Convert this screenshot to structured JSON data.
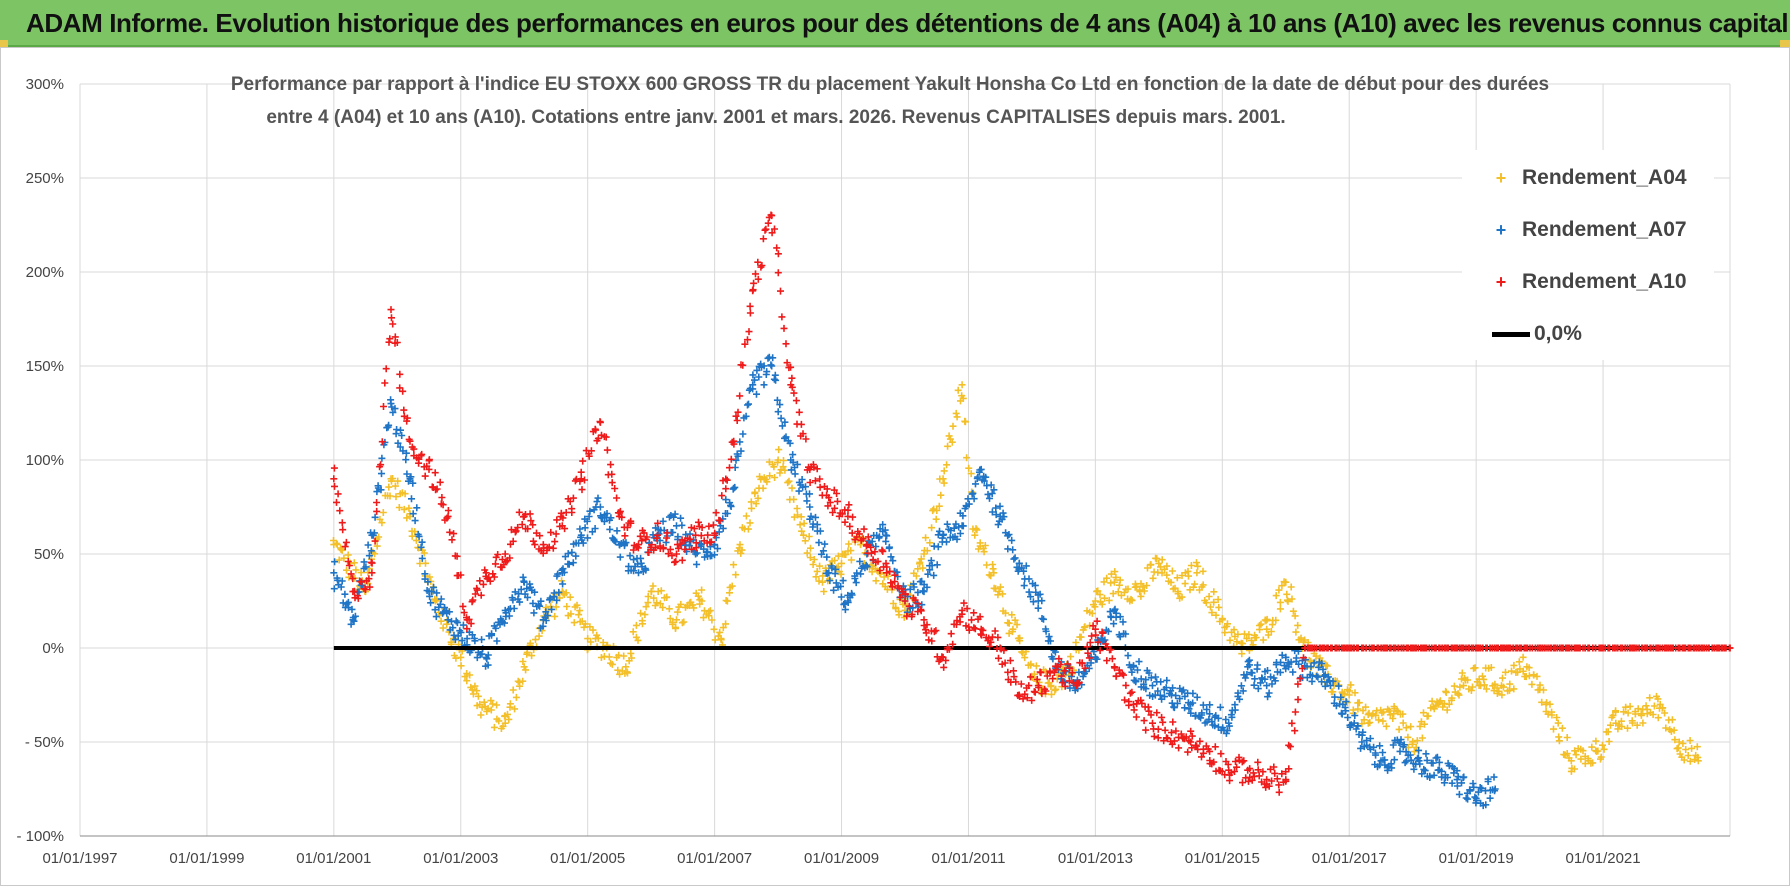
{
  "banner": {
    "title": "ADAM Informe. Evolution historique des performances en euros pour des détentions de 4 ans (A04) à 10 ans (A10) avec les revenus connus capitalisés"
  },
  "colors": {
    "banner_bg": "#7dc465",
    "A04": "#f4c02a",
    "A07": "#1f74c6",
    "A10": "#ef1b1b",
    "zero": "#000000",
    "grid": "#d9d9d9"
  },
  "chart_data": {
    "type": "scatter",
    "title_line1": "Performance par rapport à l'indice EU STOXX 600 GROSS TR  du placement Yakult Honsha Co Ltd en fonction de la date de début pour des durées",
    "title_line2": "entre 4 (A04) et 10 ans (A10).  Cotations entre janv. 2001 et mars. 2026.  Revenus CAPITALISES depuis mars. 2001.",
    "x_tick_labels": [
      "01/01/1997",
      "01/01/1999",
      "01/01/2001",
      "01/01/2003",
      "01/01/2005",
      "01/01/2007",
      "01/01/2009",
      "01/01/2011",
      "01/01/2013",
      "01/01/2015",
      "01/01/2017",
      "01/01/2019",
      "01/01/2021"
    ],
    "x_ticks": [
      1997,
      1999,
      2001,
      2003,
      2005,
      2007,
      2009,
      2011,
      2013,
      2015,
      2017,
      2019,
      2021
    ],
    "xlim": [
      1997,
      2023
    ],
    "y_tick_labels": [
      "300%",
      "250%",
      "200%",
      "150%",
      "100%",
      "50%",
      "0%",
      "- 50%",
      "- 100%"
    ],
    "y_ticks": [
      300,
      250,
      200,
      150,
      100,
      50,
      0,
      -50,
      -100
    ],
    "ylim": [
      -100,
      300
    ],
    "legend": [
      "Rendement_A04",
      "Rendement_A07",
      "Rendement_A10",
      "0,0%"
    ],
    "zero_line": {
      "label": "0,0%",
      "x_start": 2001,
      "x_end": 2023,
      "value": 0
    },
    "series": [
      {
        "name": "Rendement_A04",
        "key": "A04",
        "x": [
          2001.0,
          2001.5,
          2001.9,
          2002.2,
          2002.6,
          2003.0,
          2003.3,
          2003.7,
          2004.0,
          2004.3,
          2004.6,
          2005.0,
          2005.3,
          2005.6,
          2006.0,
          2006.4,
          2006.8,
          2007.1,
          2007.4,
          2007.7,
          2008.0,
          2008.4,
          2008.7,
          2009.0,
          2009.3,
          2009.6,
          2010.0,
          2010.3,
          2010.6,
          2010.9,
          2011.1,
          2011.4,
          2011.7,
          2012.0,
          2012.3,
          2012.6,
          2013.0,
          2013.3,
          2013.7,
          2014.0,
          2014.3,
          2014.6,
          2015.0,
          2015.3,
          2015.7,
          2016.0,
          2016.3,
          2016.6,
          2017.0,
          2017.3,
          2017.7,
          2018.0,
          2018.4,
          2018.8,
          2019.1,
          2019.4,
          2019.8,
          2020.1,
          2020.5,
          2020.9,
          2021.2,
          2021.6,
          2021.9,
          2022.2,
          2022.5
        ],
        "y": [
          55,
          30,
          90,
          70,
          25,
          -5,
          -30,
          -40,
          -10,
          15,
          30,
          5,
          0,
          -10,
          30,
          15,
          25,
          5,
          55,
          85,
          100,
          60,
          35,
          45,
          55,
          40,
          20,
          50,
          90,
          140,
          60,
          40,
          10,
          -15,
          -20,
          -10,
          25,
          35,
          30,
          45,
          30,
          40,
          15,
          0,
          10,
          35,
          0,
          -15,
          -25,
          -40,
          -35,
          -50,
          -30,
          -20,
          -15,
          -20,
          -10,
          -30,
          -60,
          -55,
          -40,
          -35,
          -30,
          -50,
          -60
        ]
      },
      {
        "name": "Rendement_A07",
        "key": "A07",
        "x": [
          2001.0,
          2001.3,
          2001.6,
          2001.9,
          2002.2,
          2002.5,
          2002.8,
          2003.1,
          2003.4,
          2003.7,
          2004.0,
          2004.3,
          2004.6,
          2004.9,
          2005.2,
          2005.5,
          2005.8,
          2006.1,
          2006.4,
          2006.7,
          2007.0,
          2007.3,
          2007.6,
          2007.9,
          2008.2,
          2008.5,
          2008.8,
          2009.1,
          2009.4,
          2009.7,
          2010.0,
          2010.3,
          2010.6,
          2010.9,
          2011.2,
          2011.5,
          2011.8,
          2012.1,
          2012.4,
          2012.7,
          2013.0,
          2013.3,
          2013.6,
          2013.9,
          2014.2,
          2014.5,
          2014.8,
          2015.1,
          2015.4,
          2015.7,
          2016.0,
          2016.3,
          2016.6,
          2016.9,
          2017.2,
          2017.5,
          2017.8,
          2018.1,
          2018.4,
          2018.7,
          2019.0,
          2019.3
        ],
        "y": [
          40,
          15,
          60,
          130,
          90,
          30,
          15,
          5,
          -5,
          20,
          35,
          15,
          40,
          60,
          75,
          55,
          40,
          60,
          65,
          50,
          55,
          85,
          140,
          150,
          100,
          75,
          40,
          25,
          50,
          60,
          25,
          30,
          60,
          65,
          95,
          70,
          45,
          25,
          -10,
          -20,
          -5,
          20,
          -10,
          -20,
          -25,
          -30,
          -35,
          -40,
          -10,
          -20,
          -5,
          -10,
          -15,
          -30,
          -50,
          -60,
          -55,
          -60,
          -65,
          -70,
          -80,
          -75
        ]
      },
      {
        "name": "Rendement_A10",
        "key": "A10",
        "x": [
          2001.0,
          2001.3,
          2001.6,
          2001.9,
          2002.2,
          2002.5,
          2002.8,
          2003.1,
          2003.4,
          2003.7,
          2004.0,
          2004.3,
          2004.6,
          2004.9,
          2005.2,
          2005.5,
          2005.8,
          2006.1,
          2006.4,
          2006.7,
          2007.0,
          2007.3,
          2007.6,
          2007.9,
          2008.2,
          2008.5,
          2008.8,
          2009.1,
          2009.4,
          2009.7,
          2010.0,
          2010.3,
          2010.6,
          2010.9,
          2011.2,
          2011.5,
          2011.8,
          2012.1,
          2012.4,
          2012.7,
          2013.0,
          2013.3,
          2013.6,
          2013.9,
          2014.2,
          2014.5,
          2014.8,
          2015.1,
          2015.4,
          2015.7,
          2016.0,
          2016.3,
          2016.6,
          2017.0,
          2017.5,
          2018.0,
          2018.5,
          2019.0,
          2019.5,
          2020.0,
          2020.5,
          2021.0,
          2021.5,
          2022.0,
          2022.5,
          2023.0
        ],
        "y": [
          90,
          30,
          40,
          180,
          110,
          95,
          70,
          15,
          40,
          50,
          70,
          55,
          65,
          90,
          120,
          70,
          55,
          60,
          50,
          60,
          60,
          110,
          190,
          230,
          140,
          95,
          80,
          70,
          55,
          45,
          25,
          15,
          -5,
          20,
          10,
          0,
          -25,
          -20,
          -10,
          -20,
          10,
          -10,
          -30,
          -40,
          -45,
          -50,
          -55,
          -65,
          -65,
          -70,
          -70,
          0,
          0,
          0,
          0,
          0,
          0,
          0,
          0,
          0,
          0,
          0,
          0,
          0,
          0,
          0
        ]
      }
    ]
  }
}
